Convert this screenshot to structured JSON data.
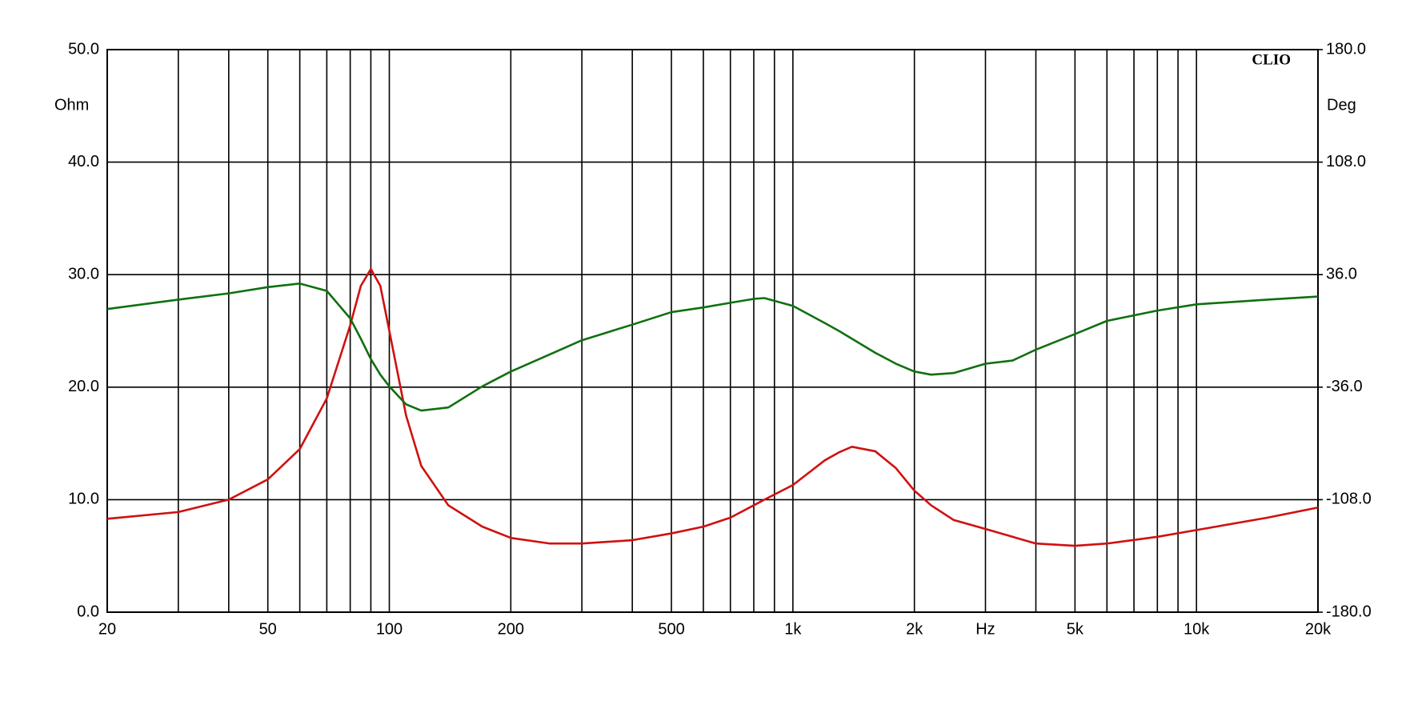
{
  "chart_data": {
    "type": "line",
    "y_label": "Ohm",
    "y2_label": "Deg",
    "annotation": "CLIO",
    "log_x": true,
    "grid": true,
    "xlim": [
      20,
      20000
    ],
    "xticks": [
      20,
      50,
      100,
      200,
      500,
      {
        "value": 1000,
        "label": "1k"
      },
      {
        "value": 2000,
        "label": "2k"
      },
      {
        "value": 3000,
        "label": "Hz"
      },
      {
        "value": 5000,
        "label": "5k"
      },
      {
        "value": 10000,
        "label": "10k"
      },
      {
        "value": 20000,
        "label": "20k"
      }
    ],
    "xgrid": [
      30,
      40,
      60,
      70,
      80,
      90,
      300,
      400,
      600,
      700,
      800,
      900,
      4000,
      6000,
      7000,
      8000,
      9000
    ],
    "ylim": [
      0,
      50
    ],
    "yticks": [
      {
        "value": 0,
        "label": "0.0"
      },
      {
        "value": 10,
        "label": "10.0"
      },
      {
        "value": 20,
        "label": "20.0"
      },
      {
        "value": 30,
        "label": "30.0"
      },
      {
        "value": 40,
        "label": "40.0"
      },
      {
        "value": 50,
        "label": "50.0"
      }
    ],
    "y2lim": [
      -180,
      180
    ],
    "y2ticks": [
      {
        "value": -180,
        "label": "-180.0"
      },
      {
        "value": -108,
        "label": "-108.0"
      },
      {
        "value": -36,
        "label": "-36.0"
      },
      {
        "value": 36,
        "label": "36.0"
      },
      {
        "value": 108,
        "label": "108.0"
      },
      {
        "value": 180,
        "label": "180.0"
      }
    ],
    "x": [
      20,
      30,
      40,
      50,
      60,
      70,
      80,
      85,
      90,
      95,
      100,
      110,
      120,
      140,
      170,
      200,
      250,
      300,
      400,
      500,
      600,
      700,
      800,
      850,
      1000,
      1200,
      1300,
      1400,
      1600,
      1800,
      2000,
      2200,
      2500,
      3000,
      3500,
      4000,
      5000,
      6000,
      8000,
      10000,
      15000,
      20000
    ],
    "series": [
      {
        "color": "#d01010",
        "values": [
          8.3,
          8.9,
          10.0,
          11.8,
          14.5,
          19,
          25.5,
          29,
          30.5,
          29,
          25,
          17.5,
          13,
          9.5,
          7.6,
          6.6,
          6.1,
          6.1,
          6.4,
          7.0,
          7.6,
          8.4,
          9.5,
          10.0,
          11.3,
          13.5,
          14.2,
          14.7,
          14.3,
          12.8,
          10.8,
          9.5,
          8.2,
          7.4,
          6.7,
          6.1,
          5.9,
          6.1,
          6.7,
          7.3,
          8.4,
          9.3
        ]
      },
      {
        "color": "#107010",
        "axis": "y2",
        "values": [
          14,
          20,
          24,
          28,
          30.3,
          25.6,
          8,
          -5,
          -18,
          -28,
          -35.5,
          -47,
          -51,
          -49,
          -35.5,
          -26,
          -15,
          -6,
          4,
          12,
          15,
          18,
          20.5,
          21,
          16,
          5,
          0,
          -5,
          -14,
          -21,
          -26,
          -28,
          -27,
          -21,
          -19,
          -12,
          -2,
          6.4,
          13,
          17,
          20,
          22
        ]
      }
    ]
  }
}
